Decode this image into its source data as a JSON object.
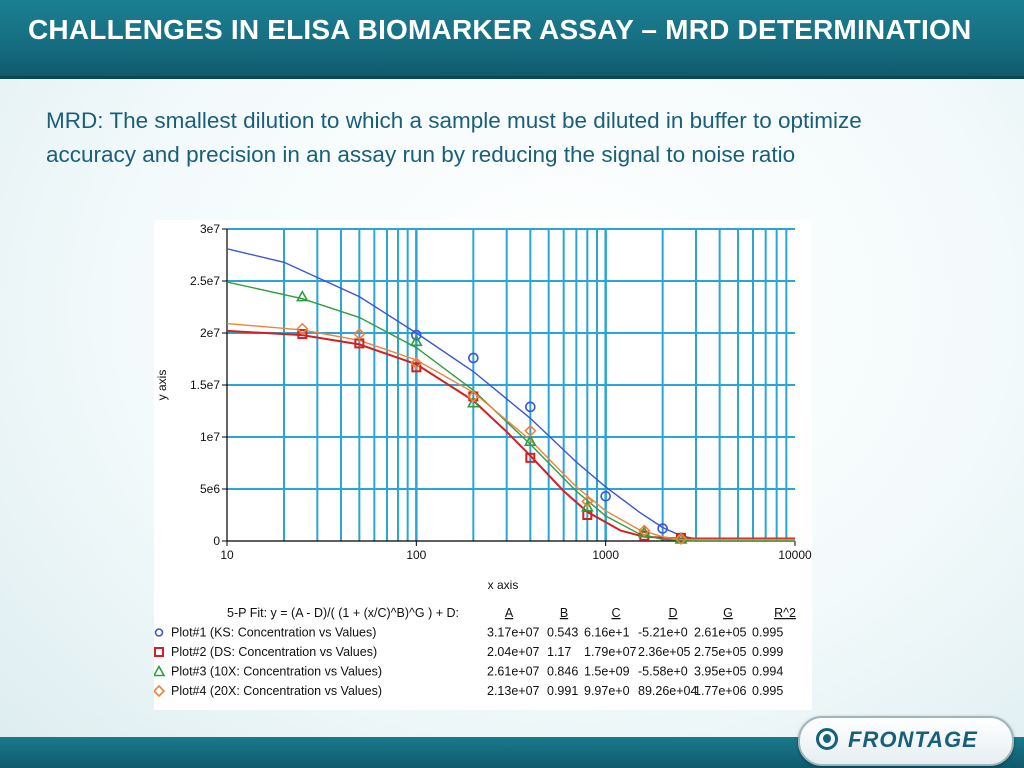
{
  "header": {
    "title": "CHALLENGES IN ELISA BIOMARKER ASSAY – MRD DETERMINATION"
  },
  "description": "MRD: The smallest dilution to which a sample must be diluted in buffer to optimize accuracy and precision in an assay run by reducing the signal to noise ratio",
  "logo": {
    "text": "FRONTAGE"
  },
  "chart_data": {
    "type": "scatter",
    "xlabel": "x axis",
    "ylabel": "y axis",
    "xscale": "log",
    "xlim": [
      10,
      10000
    ],
    "ylim": [
      0,
      30000000
    ],
    "x_ticks": [
      "10",
      "100",
      "1000",
      "10000"
    ],
    "y_ticks": [
      "0",
      "5e6",
      "1e7",
      "1.5e7",
      "2e7",
      "2.5e7",
      "3e7"
    ],
    "grid": true,
    "grid_color": "#29a6d6",
    "fit_header": "5-P Fit: y = (A - D)/( (1 + (x/C)^B)^G ) + D:",
    "param_headers": [
      "A",
      "B",
      "C",
      "D",
      "G",
      "R^2"
    ],
    "series": [
      {
        "name": "Plot#1 (KS: Concentration vs Values)",
        "marker": "circle",
        "color": "#3b54d8",
        "params": [
          "3.17e+07",
          "0.543",
          "6.16e+1",
          "-5.21e+0",
          "2.61e+05",
          "0.995"
        ],
        "points": [
          [
            100,
            19800000
          ],
          [
            200,
            17600000
          ],
          [
            400,
            12900000
          ],
          [
            1000,
            4300000
          ],
          [
            2000,
            1200000
          ],
          [
            2500,
            300000
          ]
        ],
        "curve": [
          [
            10,
            28100000
          ],
          [
            20,
            26800000
          ],
          [
            50,
            23500000
          ],
          [
            100,
            20000000
          ],
          [
            200,
            16300000
          ],
          [
            400,
            11800000
          ],
          [
            700,
            7600000
          ],
          [
            1000,
            5200000
          ],
          [
            1500,
            2800000
          ],
          [
            2000,
            1300000
          ],
          [
            2500,
            500000
          ],
          [
            3000,
            200000
          ],
          [
            10000,
            200000
          ]
        ]
      },
      {
        "name": "Plot#2 (DS: Concentration vs Values)",
        "marker": "square",
        "color": "#d42020",
        "params": [
          "2.04e+07",
          "1.17",
          "1.79e+07",
          "2.36e+05",
          "2.75e+05",
          "0.999"
        ],
        "points": [
          [
            25,
            19900000
          ],
          [
            50,
            19000000
          ],
          [
            100,
            16700000
          ],
          [
            200,
            13900000
          ],
          [
            400,
            8000000
          ],
          [
            800,
            2500000
          ],
          [
            1600,
            500000
          ],
          [
            2500,
            300000
          ]
        ],
        "curve": [
          [
            10,
            20200000
          ],
          [
            25,
            19800000
          ],
          [
            50,
            18900000
          ],
          [
            100,
            17000000
          ],
          [
            200,
            13500000
          ],
          [
            300,
            10500000
          ],
          [
            400,
            8200000
          ],
          [
            600,
            4800000
          ],
          [
            800,
            2800000
          ],
          [
            1200,
            1000000
          ],
          [
            1600,
            400000
          ],
          [
            2500,
            240000
          ],
          [
            10000,
            240000
          ]
        ]
      },
      {
        "name": "Plot#3 (10X: Concentration vs Values)",
        "marker": "triangle",
        "color": "#2e9e3e",
        "params": [
          "2.61e+07",
          "0.846",
          "1.5e+09",
          "-5.58e+0",
          "3.95e+05",
          "0.994"
        ],
        "points": [
          [
            25,
            23500000
          ],
          [
            100,
            19200000
          ],
          [
            200,
            13300000
          ],
          [
            400,
            9600000
          ],
          [
            800,
            3300000
          ],
          [
            1600,
            800000
          ],
          [
            2500,
            200000
          ]
        ],
        "curve": [
          [
            10,
            24900000
          ],
          [
            25,
            23300000
          ],
          [
            50,
            21500000
          ],
          [
            100,
            18600000
          ],
          [
            200,
            14500000
          ],
          [
            400,
            9300000
          ],
          [
            700,
            4800000
          ],
          [
            1000,
            2400000
          ],
          [
            1500,
            700000
          ],
          [
            2000,
            150000
          ],
          [
            3000,
            0
          ],
          [
            10000,
            0
          ]
        ]
      },
      {
        "name": "Plot#4 (20X: Concentration vs Values)",
        "marker": "diamond",
        "color": "#f0823a",
        "params": [
          "2.13e+07",
          "0.991",
          "9.97e+0",
          "89.26e+04",
          "1.77e+06",
          "0.995"
        ],
        "points": [
          [
            25,
            20400000
          ],
          [
            50,
            19900000
          ],
          [
            100,
            17100000
          ],
          [
            200,
            13900000
          ],
          [
            400,
            10600000
          ],
          [
            800,
            3800000
          ],
          [
            1600,
            1000000
          ],
          [
            2500,
            200000
          ]
        ],
        "curve": [
          [
            10,
            20900000
          ],
          [
            25,
            20300000
          ],
          [
            50,
            19300000
          ],
          [
            100,
            17400000
          ],
          [
            200,
            14300000
          ],
          [
            400,
            9700000
          ],
          [
            700,
            5200000
          ],
          [
            1000,
            2900000
          ],
          [
            1500,
            1100000
          ],
          [
            2000,
            400000
          ],
          [
            2500,
            150000
          ],
          [
            10000,
            150000
          ]
        ]
      }
    ]
  }
}
